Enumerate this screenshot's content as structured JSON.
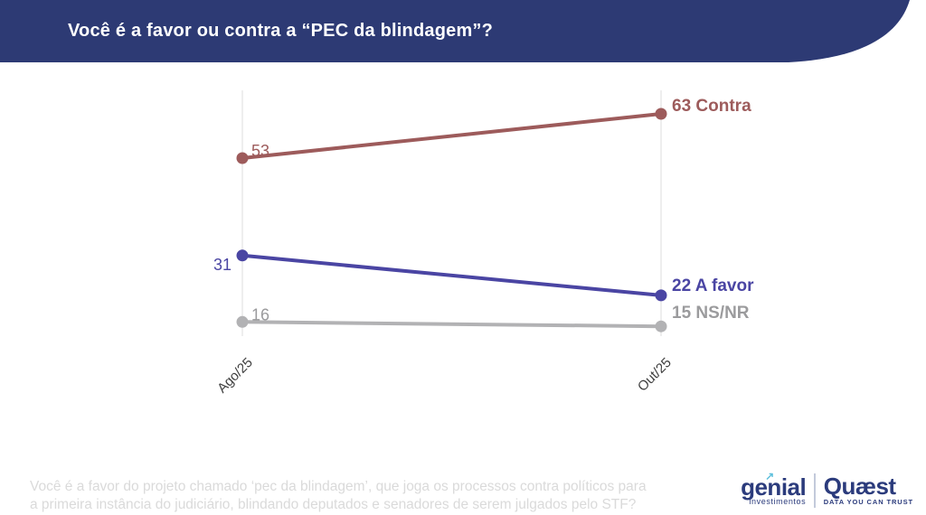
{
  "header": {
    "title": "Você é a favor ou contra a “PEC da blindagem”?",
    "bg_color": "#2d3a74"
  },
  "chart_data": {
    "type": "line",
    "categories": [
      "Ago/25",
      "Out/25"
    ],
    "series": [
      {
        "name": "Contra",
        "values": [
          53,
          63
        ],
        "color": "#9d5b5b",
        "end_label": "63 Contra"
      },
      {
        "name": "A favor",
        "values": [
          31,
          22
        ],
        "color": "#4a45a3",
        "end_label": "22 A favor"
      },
      {
        "name": "NS/NR",
        "values": [
          16,
          15
        ],
        "color": "#b2b2b4",
        "label_color": "#9b9b9d",
        "end_label": "15 NS/NR"
      }
    ],
    "title": "Você é a favor ou contra a “PEC da blindagem”?",
    "xlabel": "",
    "ylabel": "",
    "ylim": [
      0,
      75
    ],
    "grid": "vertical gridline at each category",
    "gridline_color": "#e9e9e9",
    "axis_label_color": "#3e3e3e",
    "legend_position": "end-of-line labels"
  },
  "footer": {
    "question_lines": [
      "Você é a favor do projeto chamado ‘pec da blindagem’, que joga os processos contra políticos para",
      "a primeira instância do judiciário, blindando deputados e senadores de serem julgados pelo STF?"
    ],
    "genial": {
      "name": "genial",
      "sub": "investimentos",
      "arrow_icon": "↗",
      "color": "#2b3b7c",
      "arrow_color": "#5fc0dc"
    },
    "quaest": {
      "name": "Quæst",
      "tagline": "DATA YOU CAN TRUST",
      "color": "#2b3b7c"
    }
  }
}
